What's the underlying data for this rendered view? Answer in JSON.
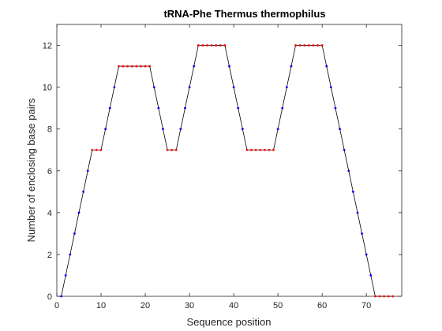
{
  "chart_data": {
    "type": "line",
    "title": "tRNA-Phe Thermus thermophilus",
    "xlabel": "Sequence position",
    "ylabel": "Number of enclosing base pairs",
    "xlim": [
      0,
      78
    ],
    "ylim": [
      0,
      13
    ],
    "xticks": [
      0,
      10,
      20,
      30,
      40,
      50,
      60,
      70
    ],
    "yticks": [
      0,
      2,
      4,
      6,
      8,
      10,
      12
    ],
    "grid": false,
    "colors": {
      "line": "#000000",
      "unpaired_marker": "#0000ff",
      "paired_marker": "#ff0000",
      "axis": "#262626"
    },
    "series": [
      {
        "x": [
          1,
          2,
          3,
          4,
          5,
          6,
          7,
          8,
          9,
          10,
          11,
          12,
          13,
          14,
          15,
          16,
          17,
          18,
          19,
          20,
          21,
          22,
          23,
          24,
          25,
          26,
          27,
          28,
          29,
          30,
          31,
          32,
          33,
          34,
          35,
          36,
          37,
          38,
          39,
          40,
          41,
          42,
          43,
          44,
          45,
          46,
          47,
          48,
          49,
          50,
          51,
          52,
          53,
          54,
          55,
          56,
          57,
          58,
          59,
          60,
          61,
          62,
          63,
          64,
          65,
          66,
          67,
          68,
          69,
          70,
          71,
          72,
          73,
          74,
          75,
          76
        ],
        "values": [
          0,
          1,
          2,
          3,
          4,
          5,
          6,
          7,
          7,
          7,
          8,
          9,
          10,
          11,
          11,
          11,
          11,
          11,
          11,
          11,
          11,
          10,
          9,
          8,
          7,
          7,
          7,
          8,
          9,
          10,
          11,
          12,
          12,
          12,
          12,
          12,
          12,
          12,
          11,
          10,
          9,
          8,
          7,
          7,
          7,
          7,
          7,
          7,
          7,
          8,
          9,
          10,
          11,
          12,
          12,
          12,
          12,
          12,
          12,
          12,
          11,
          10,
          9,
          8,
          7,
          6,
          5,
          4,
          3,
          2,
          1,
          0,
          0,
          0,
          0,
          0
        ],
        "markers": [
          "b",
          "b",
          "b",
          "b",
          "b",
          "b",
          "b",
          "r",
          "r",
          "r",
          "b",
          "b",
          "b",
          "r",
          "r",
          "r",
          "r",
          "r",
          "r",
          "r",
          "r",
          "b",
          "b",
          "b",
          "r",
          "r",
          "r",
          "b",
          "b",
          "b",
          "b",
          "r",
          "r",
          "r",
          "r",
          "r",
          "r",
          "r",
          "b",
          "b",
          "b",
          "b",
          "r",
          "r",
          "r",
          "r",
          "r",
          "r",
          "r",
          "b",
          "b",
          "b",
          "b",
          "r",
          "r",
          "r",
          "r",
          "r",
          "r",
          "r",
          "b",
          "b",
          "b",
          "b",
          "b",
          "b",
          "b",
          "b",
          "b",
          "b",
          "b",
          "r",
          "r",
          "r",
          "r",
          "r"
        ]
      }
    ]
  }
}
